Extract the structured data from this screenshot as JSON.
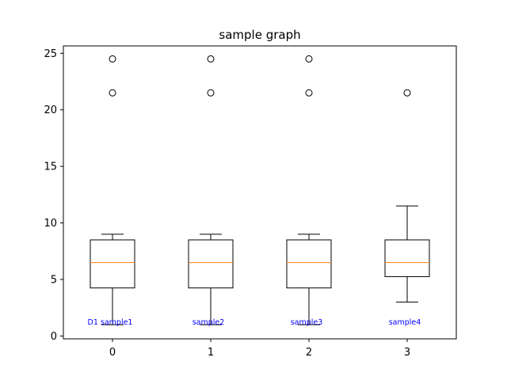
{
  "chart_data": {
    "type": "box",
    "title": "sample graph",
    "xlabel": "",
    "ylabel": "",
    "categories": [
      "0",
      "1",
      "2",
      "3"
    ],
    "ylim": [
      -0.25,
      25.65
    ],
    "y_ticks": [
      0,
      5,
      10,
      15,
      20,
      25
    ],
    "grid": false,
    "colors": {
      "median": "#ff7f0e",
      "box": "#000000",
      "annotation": "#0000ff"
    },
    "boxes": [
      {
        "category": "0",
        "whisker_low": 1,
        "q1": 4.25,
        "median": 6.5,
        "q3": 8.5,
        "whisker_high": 9,
        "outliers": [
          21.5,
          24.5
        ],
        "annotation": "D1 sample1"
      },
      {
        "category": "1",
        "whisker_low": 1,
        "q1": 4.25,
        "median": 6.5,
        "q3": 8.5,
        "whisker_high": 9,
        "outliers": [
          21.5,
          24.5
        ],
        "annotation": "sample2"
      },
      {
        "category": "2",
        "whisker_low": 1,
        "q1": 4.25,
        "median": 6.5,
        "q3": 8.5,
        "whisker_high": 9,
        "outliers": [
          21.5,
          24.5
        ],
        "annotation": "sample3"
      },
      {
        "category": "3",
        "whisker_low": 3,
        "q1": 5.25,
        "median": 6.5,
        "q3": 8.5,
        "whisker_high": 11.5,
        "outliers": [
          21.5
        ],
        "annotation": "sample4"
      }
    ]
  }
}
